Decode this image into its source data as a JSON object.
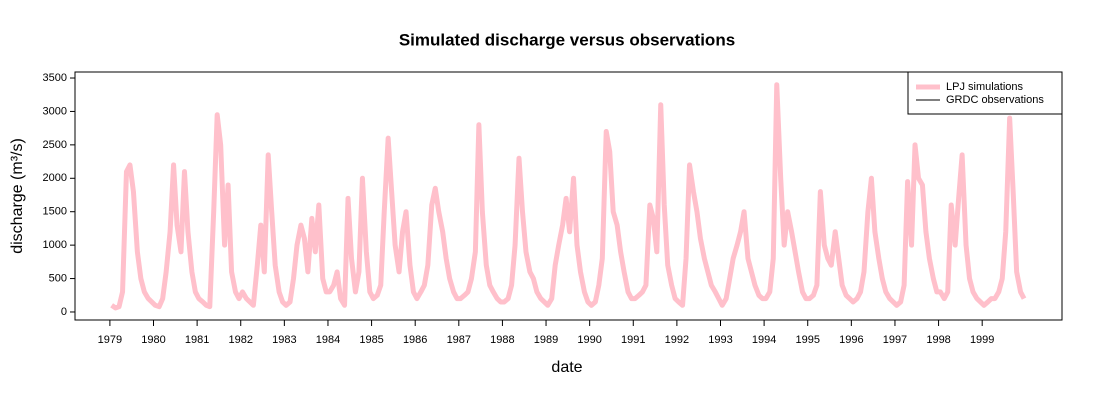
{
  "chart_data": {
    "type": "line",
    "title": "Simulated discharge versus observations",
    "x_label": "date",
    "y_label": "discharge (m³/s)",
    "xlim": [
      1978.2,
      2000.83
    ],
    "ylim": [
      -120,
      3590
    ],
    "xticks": [
      1979,
      1980,
      1981,
      1982,
      1983,
      1984,
      1985,
      1986,
      1987,
      1988,
      1989,
      1990,
      1991,
      1992,
      1993,
      1994,
      1995,
      1996,
      1997,
      1998,
      1999
    ],
    "yticks": [
      0,
      500,
      1000,
      1500,
      2000,
      2500,
      3000,
      3500
    ],
    "legend_position": "topright",
    "x": [
      1979.04,
      1979.13,
      1979.21,
      1979.29,
      1979.38,
      1979.46,
      1979.54,
      1979.63,
      1979.71,
      1979.79,
      1979.88,
      1979.96,
      1980.04,
      1980.13,
      1980.21,
      1980.29,
      1980.38,
      1980.46,
      1980.54,
      1980.63,
      1980.71,
      1980.79,
      1980.88,
      1980.96,
      1981.04,
      1981.13,
      1981.21,
      1981.29,
      1981.38,
      1981.46,
      1981.54,
      1981.63,
      1981.71,
      1981.79,
      1981.88,
      1981.96,
      1982.04,
      1982.13,
      1982.21,
      1982.29,
      1982.38,
      1982.46,
      1982.54,
      1982.63,
      1982.71,
      1982.79,
      1982.88,
      1982.96,
      1983.04,
      1983.13,
      1983.21,
      1983.29,
      1983.38,
      1983.46,
      1983.54,
      1983.63,
      1983.71,
      1983.79,
      1983.88,
      1983.96,
      1984.04,
      1984.13,
      1984.21,
      1984.29,
      1984.38,
      1984.46,
      1984.54,
      1984.63,
      1984.71,
      1984.79,
      1984.88,
      1984.96,
      1985.04,
      1985.13,
      1985.21,
      1985.29,
      1985.38,
      1985.46,
      1985.54,
      1985.63,
      1985.71,
      1985.79,
      1985.88,
      1985.96,
      1986.04,
      1986.13,
      1986.21,
      1986.29,
      1986.38,
      1986.46,
      1986.54,
      1986.63,
      1986.71,
      1986.79,
      1986.88,
      1986.96,
      1987.04,
      1987.13,
      1987.21,
      1987.29,
      1987.38,
      1987.46,
      1987.54,
      1987.63,
      1987.71,
      1987.79,
      1987.88,
      1987.96,
      1988.04,
      1988.13,
      1988.21,
      1988.29,
      1988.38,
      1988.46,
      1988.54,
      1988.63,
      1988.71,
      1988.79,
      1988.88,
      1988.96,
      1989.04,
      1989.13,
      1989.21,
      1989.29,
      1989.38,
      1989.46,
      1989.54,
      1989.63,
      1989.71,
      1989.79,
      1989.88,
      1989.96,
      1990.04,
      1990.13,
      1990.21,
      1990.29,
      1990.38,
      1990.46,
      1990.54,
      1990.63,
      1990.71,
      1990.79,
      1990.88,
      1990.96,
      1991.04,
      1991.13,
      1991.21,
      1991.29,
      1991.38,
      1991.46,
      1991.54,
      1991.63,
      1991.71,
      1991.79,
      1991.88,
      1991.96,
      1992.04,
      1992.13,
      1992.21,
      1992.29,
      1992.38,
      1992.46,
      1992.54,
      1992.63,
      1992.71,
      1992.79,
      1992.88,
      1992.96,
      1993.04,
      1993.13,
      1993.21,
      1993.29,
      1993.38,
      1993.46,
      1993.54,
      1993.63,
      1993.71,
      1993.79,
      1993.88,
      1993.96,
      1994.04,
      1994.13,
      1994.21,
      1994.29,
      1994.38,
      1994.46,
      1994.54,
      1994.63,
      1994.71,
      1994.79,
      1994.88,
      1994.96,
      1995.04,
      1995.13,
      1995.21,
      1995.29,
      1995.38,
      1995.46,
      1995.54,
      1995.63,
      1995.71,
      1995.79,
      1995.88,
      1995.96,
      1996.04,
      1996.13,
      1996.21,
      1996.29,
      1996.38,
      1996.46,
      1996.54,
      1996.63,
      1996.71,
      1996.79,
      1996.88,
      1996.96,
      1997.04,
      1997.13,
      1997.21,
      1997.29,
      1997.38,
      1997.46,
      1997.54,
      1997.63,
      1997.71,
      1997.79,
      1997.88,
      1997.96,
      1998.04,
      1998.13,
      1998.21,
      1998.29,
      1998.38,
      1998.46,
      1998.54,
      1998.63,
      1998.71,
      1998.79,
      1998.88,
      1998.96,
      1999.04,
      1999.13,
      1999.21,
      1999.29,
      1999.38,
      1999.46,
      1999.54,
      1999.63,
      1999.71,
      1999.79,
      1999.88,
      1999.96
    ],
    "series": [
      {
        "name": "LPJ simulations",
        "color": "#ffc0cb",
        "values": [
          100,
          60,
          80,
          300,
          2100,
          2200,
          1800,
          900,
          500,
          300,
          200,
          150,
          100,
          80,
          200,
          600,
          1200,
          2200,
          1300,
          900,
          2100,
          1200,
          600,
          300,
          200,
          150,
          100,
          80,
          1500,
          2950,
          2500,
          1000,
          1900,
          600,
          300,
          200,
          300,
          200,
          150,
          100,
          700,
          1300,
          600,
          2350,
          1500,
          700,
          300,
          150,
          100,
          150,
          500,
          1000,
          1300,
          1100,
          600,
          1400,
          900,
          1600,
          500,
          300,
          300,
          400,
          600,
          200,
          100,
          1700,
          800,
          300,
          600,
          2000,
          900,
          300,
          200,
          250,
          400,
          1500,
          2600,
          1800,
          1000,
          600,
          1200,
          1500,
          700,
          300,
          200,
          300,
          400,
          700,
          1600,
          1850,
          1500,
          1200,
          800,
          500,
          300,
          200,
          200,
          250,
          300,
          500,
          900,
          2800,
          1500,
          700,
          400,
          300,
          200,
          150,
          150,
          200,
          400,
          1000,
          2300,
          1500,
          900,
          600,
          500,
          300,
          200,
          150,
          100,
          200,
          700,
          1000,
          1300,
          1700,
          1200,
          2000,
          1000,
          600,
          300,
          150,
          100,
          150,
          400,
          800,
          2700,
          2400,
          1500,
          1300,
          900,
          600,
          300,
          200,
          200,
          250,
          300,
          400,
          1600,
          1400,
          900,
          3100,
          1600,
          700,
          400,
          200,
          150,
          100,
          800,
          2200,
          1800,
          1500,
          1100,
          800,
          600,
          400,
          300,
          200,
          100,
          200,
          500,
          800,
          1000,
          1200,
          1500,
          800,
          600,
          400,
          250,
          200,
          200,
          300,
          800,
          3400,
          2000,
          1000,
          1500,
          1200,
          900,
          600,
          300,
          200,
          200,
          250,
          400,
          1800,
          1000,
          800,
          700,
          1200,
          800,
          400,
          250,
          200,
          150,
          200,
          300,
          600,
          1500,
          2000,
          1200,
          800,
          500,
          300,
          200,
          150,
          100,
          150,
          400,
          1950,
          1000,
          2500,
          2000,
          1900,
          1200,
          800,
          500,
          300,
          300,
          200,
          300,
          1600,
          1000,
          1700,
          2350,
          1000,
          500,
          300,
          200,
          150,
          100,
          150,
          200,
          200,
          300,
          500,
          1200,
          2900,
          1800,
          600,
          300,
          200
        ]
      },
      {
        "name": "GRDC observations",
        "color": "#000000"
      }
    ]
  }
}
